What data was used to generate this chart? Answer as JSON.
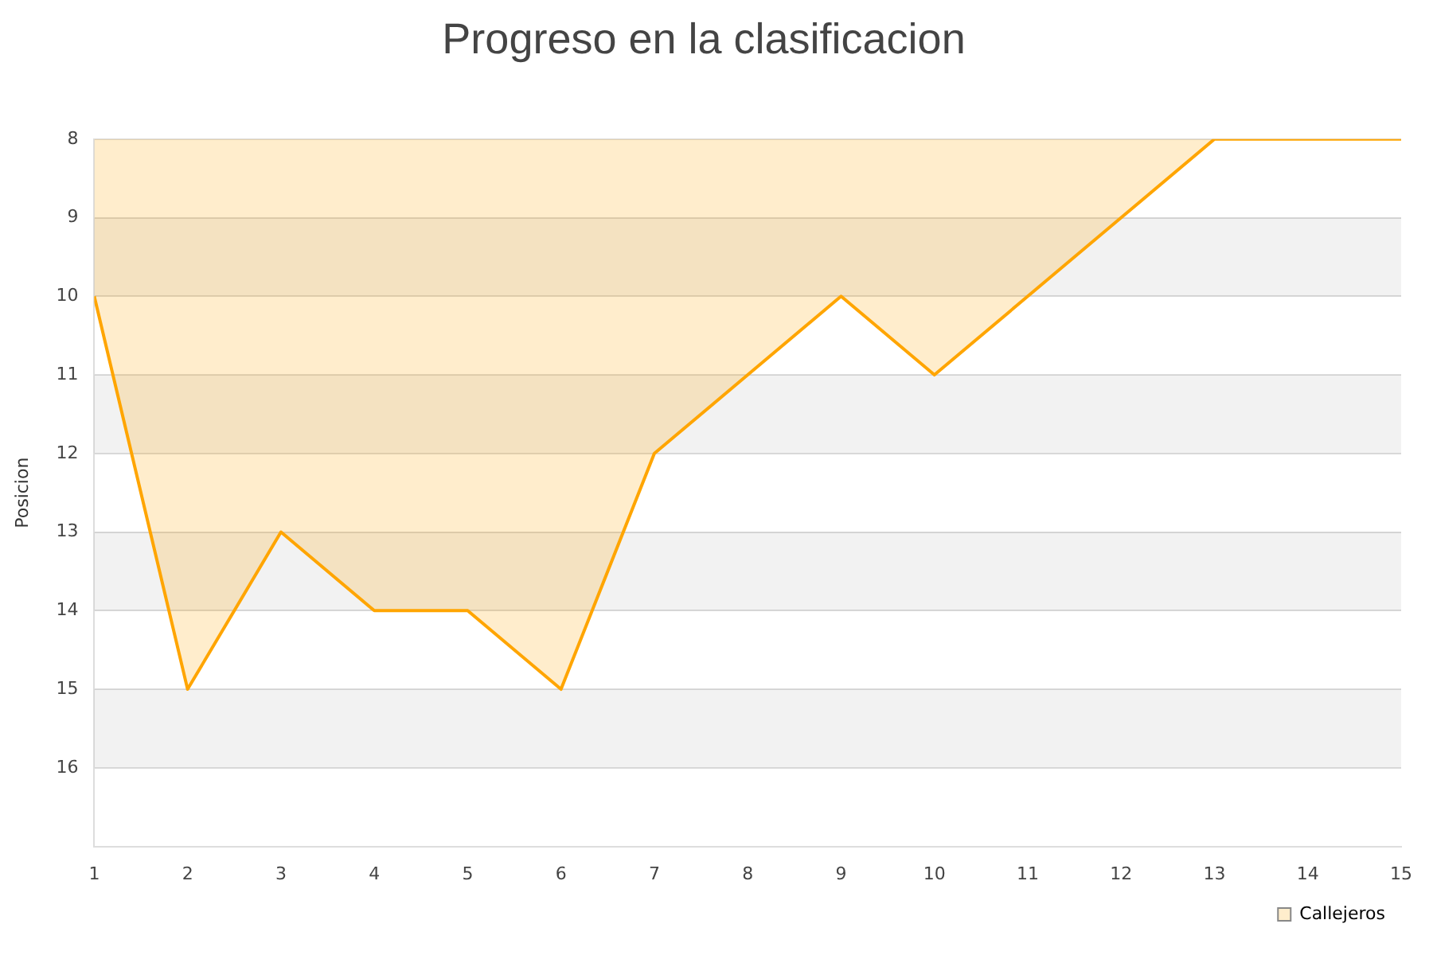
{
  "chart_data": {
    "type": "area",
    "title": "Progreso en la clasificacion",
    "ylabel": "Posicion",
    "x": [
      1,
      2,
      3,
      4,
      5,
      6,
      7,
      8,
      9,
      10,
      11,
      12,
      13,
      14,
      15
    ],
    "series": [
      {
        "name": "Callejeros",
        "color": "#ffa500",
        "values": [
          10,
          15,
          13,
          14,
          14,
          15,
          12,
          11,
          10,
          11,
          10,
          9,
          8,
          8,
          8
        ]
      }
    ],
    "xlim": [
      1,
      15
    ],
    "xticks": [
      1,
      2,
      3,
      4,
      5,
      6,
      7,
      8,
      9,
      10,
      11,
      12,
      13,
      14,
      15
    ],
    "ylim": [
      17,
      8
    ],
    "yticks": [
      8,
      9,
      10,
      11,
      12,
      13,
      14,
      15,
      16
    ],
    "grid": "y",
    "legend": "bottom right",
    "marker": "none",
    "line_style": "solid"
  }
}
